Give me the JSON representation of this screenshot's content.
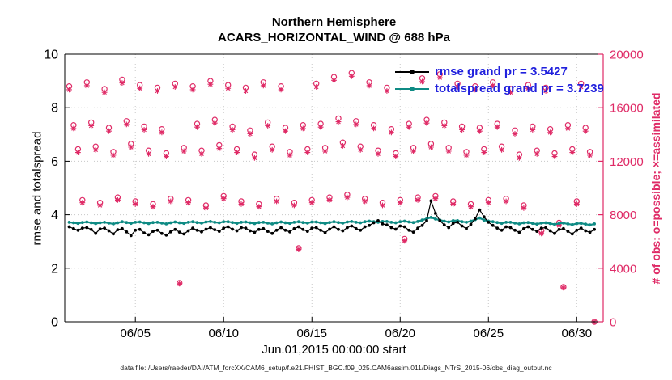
{
  "title": {
    "line1": "Northern Hemisphere",
    "line2": "ACARS_HORIZONTAL_WIND @ 688 hPa"
  },
  "axes": {
    "left_label": "rmse and totalspread",
    "right_label": "# of obs: o=possible; ×=assimilated",
    "x_label": "Jun.01,2015 00:00:00 start"
  },
  "legend": [
    {
      "label": "rmse grand pr = 3.5427",
      "color": "#000000",
      "text_color": "#2020dd"
    },
    {
      "label": "totalspread grand pr = 3.7239",
      "color": "#0f8b84",
      "text_color": "#2020dd"
    }
  ],
  "caption": "data file: /Users/raeder/DAI/ATM_forcXX/CAM6_setup/f.e21.FHIST_BGC.f09_025.CAM6assim.011/Diags_NTrS_2015-06/obs_diag_output.nc",
  "colors": {
    "obs": "#df2a66",
    "rmse": "#000000",
    "totalspread": "#0f8b84",
    "grid": "#c8c8c8",
    "axis": "#000000",
    "legend_text": "#2020dd"
  },
  "chart_data": {
    "type": "line",
    "title": "Northern Hemisphere ACARS_HORIZONTAL_WIND @ 688 hPa",
    "xlabel": "Jun.01,2015 00:00:00 start",
    "ylabel_left": "rmse and totalspread",
    "ylabel_right": "# of obs: o=possible; ×=assimilated",
    "x_unit": "days since 2015-06-01 00:00",
    "x_start": 0.25,
    "x_step": 0.25,
    "xlim": [
      0,
      30.5
    ],
    "ylim_left": [
      0,
      10
    ],
    "ylim_right": [
      0,
      20000
    ],
    "grid": true,
    "legend_position": "upper-center-right",
    "x_ticks": [
      {
        "day": 4,
        "label": "06/05"
      },
      {
        "day": 9,
        "label": "06/10"
      },
      {
        "day": 14,
        "label": "06/15"
      },
      {
        "day": 19,
        "label": "06/20"
      },
      {
        "day": 24,
        "label": "06/25"
      },
      {
        "day": 29,
        "label": "06/30"
      }
    ],
    "left_ticks": [
      0,
      2,
      4,
      6,
      8,
      10
    ],
    "right_ticks": [
      0,
      4000,
      8000,
      12000,
      16000,
      20000
    ],
    "series": [
      {
        "name": "rmse",
        "type": "line",
        "axis": "left",
        "marker": "dot",
        "color": "#000000",
        "grand_mean": 3.5427,
        "values": [
          3.55,
          3.48,
          3.42,
          3.5,
          3.52,
          3.45,
          3.3,
          3.47,
          3.5,
          3.4,
          3.28,
          3.44,
          3.48,
          3.36,
          3.22,
          3.42,
          3.45,
          3.32,
          3.25,
          3.38,
          3.42,
          3.3,
          3.24,
          3.36,
          3.45,
          3.35,
          3.28,
          3.4,
          3.5,
          3.42,
          3.36,
          3.46,
          3.52,
          3.44,
          3.38,
          3.5,
          3.55,
          3.46,
          3.4,
          3.52,
          3.5,
          3.4,
          3.34,
          3.45,
          3.48,
          3.38,
          3.3,
          3.42,
          3.52,
          3.42,
          3.36,
          3.48,
          3.55,
          3.45,
          3.38,
          3.5,
          3.52,
          3.42,
          3.33,
          3.46,
          3.55,
          3.45,
          3.4,
          3.52,
          3.58,
          3.48,
          3.42,
          3.55,
          3.6,
          3.7,
          3.78,
          3.66,
          3.62,
          3.52,
          3.46,
          3.58,
          3.55,
          3.42,
          3.35,
          3.5,
          3.6,
          3.78,
          4.52,
          4.05,
          3.78,
          3.62,
          3.52,
          3.68,
          3.72,
          3.58,
          3.48,
          3.64,
          3.85,
          4.18,
          3.92,
          3.72,
          3.6,
          3.5,
          3.42,
          3.55,
          3.52,
          3.42,
          3.34,
          3.48,
          3.55,
          3.45,
          3.38,
          3.5,
          3.52,
          3.4,
          3.3,
          3.45,
          3.48,
          3.38,
          3.28,
          3.42,
          3.5,
          3.4,
          3.34,
          3.45
        ]
      },
      {
        "name": "totalspread",
        "type": "line",
        "axis": "left",
        "marker": "dot",
        "color": "#0f8b84",
        "grand_mean": 3.7239,
        "values": [
          3.72,
          3.7,
          3.68,
          3.71,
          3.73,
          3.7,
          3.67,
          3.7,
          3.72,
          3.69,
          3.66,
          3.7,
          3.74,
          3.71,
          3.68,
          3.72,
          3.73,
          3.7,
          3.67,
          3.71,
          3.72,
          3.69,
          3.66,
          3.7,
          3.73,
          3.7,
          3.68,
          3.72,
          3.74,
          3.71,
          3.69,
          3.73,
          3.75,
          3.72,
          3.7,
          3.74,
          3.74,
          3.71,
          3.68,
          3.72,
          3.73,
          3.7,
          3.67,
          3.71,
          3.72,
          3.69,
          3.66,
          3.7,
          3.73,
          3.7,
          3.68,
          3.72,
          3.74,
          3.71,
          3.69,
          3.73,
          3.73,
          3.7,
          3.67,
          3.71,
          3.74,
          3.71,
          3.69,
          3.73,
          3.75,
          3.72,
          3.7,
          3.74,
          3.76,
          3.74,
          3.72,
          3.75,
          3.75,
          3.72,
          3.7,
          3.74,
          3.76,
          3.73,
          3.71,
          3.75,
          3.8,
          3.85,
          3.9,
          3.84,
          3.8,
          3.76,
          3.73,
          3.78,
          3.78,
          3.74,
          3.72,
          3.76,
          3.82,
          3.88,
          3.8,
          3.76,
          3.74,
          3.71,
          3.68,
          3.72,
          3.72,
          3.69,
          3.66,
          3.7,
          3.71,
          3.68,
          3.65,
          3.69,
          3.7,
          3.67,
          3.64,
          3.68,
          3.69,
          3.66,
          3.63,
          3.67,
          3.68,
          3.65,
          3.62,
          3.66
        ]
      },
      {
        "name": "possible_obs",
        "type": "scatter",
        "axis": "right",
        "marker": "circle",
        "color": "#df2a66",
        "values": [
          17600,
          14700,
          12900,
          9100,
          17900,
          14900,
          13100,
          8900,
          17400,
          14500,
          12700,
          9300,
          18100,
          15000,
          13300,
          9000,
          17700,
          14600,
          12800,
          8800,
          17500,
          14400,
          12600,
          9200,
          17800,
          2900,
          13000,
          9100,
          17600,
          14800,
          12800,
          8700,
          18000,
          15100,
          13200,
          9400,
          17700,
          14600,
          12900,
          9000,
          17500,
          14300,
          12500,
          8800,
          17900,
          14900,
          13100,
          9200,
          17600,
          14500,
          12700,
          8900,
          5500,
          14700,
          12900,
          9100,
          17800,
          14800,
          13000,
          9300,
          18300,
          15200,
          13400,
          9500,
          18600,
          15000,
          13100,
          9200,
          17900,
          14700,
          12800,
          8900,
          17500,
          14400,
          12600,
          9100,
          6200,
          14800,
          13000,
          9300,
          18200,
          15100,
          13300,
          9400,
          18500,
          14900,
          13000,
          9000,
          17800,
          14600,
          12700,
          8800,
          17600,
          14500,
          12900,
          9100,
          17900,
          14800,
          13100,
          9200,
          17400,
          14300,
          12500,
          8700,
          17700,
          14600,
          12800,
          6800,
          17500,
          14400,
          12600,
          7400,
          2600,
          14700,
          12900,
          9000,
          17800,
          14500,
          12700,
          0
        ]
      },
      {
        "name": "assimilated_obs",
        "type": "scatter",
        "axis": "right",
        "marker": "asterisk",
        "color": "#df2a66",
        "values": [
          17350,
          14450,
          12650,
          8900,
          17650,
          14650,
          12850,
          8700,
          17150,
          14250,
          12450,
          9100,
          17850,
          14750,
          13050,
          8800,
          17450,
          14350,
          12550,
          8600,
          17250,
          14150,
          12350,
          9000,
          17550,
          2850,
          12750,
          8900,
          17350,
          14550,
          12550,
          8500,
          17750,
          14850,
          12950,
          9200,
          17450,
          14350,
          12650,
          8800,
          17250,
          14050,
          12250,
          8600,
          17650,
          14650,
          12850,
          9000,
          17350,
          14250,
          12450,
          8700,
          5400,
          14450,
          12650,
          8900,
          17550,
          14550,
          12750,
          9100,
          18050,
          14950,
          13150,
          9300,
          18350,
          14750,
          12850,
          9000,
          17650,
          14450,
          12550,
          8700,
          17250,
          14150,
          12350,
          8900,
          6050,
          14550,
          12750,
          9100,
          17950,
          14850,
          13050,
          9200,
          18250,
          14650,
          12750,
          8800,
          17550,
          14350,
          12450,
          8600,
          17350,
          14250,
          12650,
          8900,
          17650,
          14550,
          12850,
          9000,
          17150,
          14050,
          12250,
          8500,
          17450,
          14350,
          12550,
          6600,
          17250,
          14150,
          12350,
          7200,
          2550,
          14450,
          12650,
          8800,
          17550,
          14250,
          12450,
          0
        ]
      }
    ]
  }
}
